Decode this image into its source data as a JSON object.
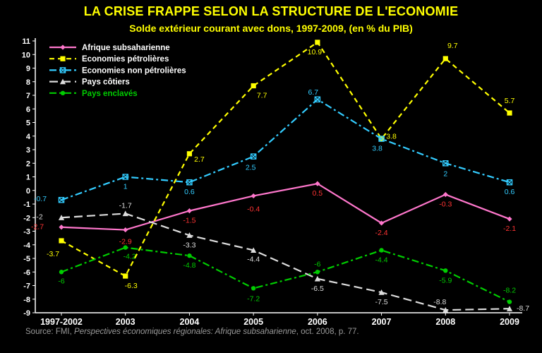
{
  "title": "LA CRISE FRAPPE SELON LA STRUCTURE DE L'ECONOMIE",
  "subtitle": "Solde extérieur courant avec dons, 1997-2009, (en % du PIB)",
  "source_prefix": "Source:  FMI, ",
  "source_italic": "Perspectives économiques régionales: Afrique subsaharienne",
  "source_suffix": ", oct. 2008, p. 77.",
  "chart_data": {
    "type": "line",
    "title": "LA CRISE FRAPPE SELON LA STRUCTURE DE L'ECONOMIE",
    "subtitle": "Solde extérieur courant avec dons, 1997-2009, (en % du PIB)",
    "categories": [
      "1997-2002",
      "2003",
      "2004",
      "2005",
      "2006",
      "2007",
      "2008",
      "2009"
    ],
    "ylim": [
      -9,
      11
    ],
    "yticks": [
      -9,
      -8,
      -7,
      -6,
      -5,
      -4,
      -3,
      -2,
      -1,
      0,
      1,
      2,
      3,
      4,
      5,
      6,
      7,
      8,
      9,
      10,
      11
    ],
    "grid": false,
    "legend_position": "top-left",
    "series": [
      {
        "name": "Afrique subsaharienne",
        "color": "#FF77CC",
        "label_color": "#FF3333",
        "dash": "solid",
        "marker": "diamond",
        "values": [
          -2.7,
          -2.9,
          -1.5,
          -0.4,
          0.5,
          -2.4,
          -0.3,
          -2.1
        ],
        "labels": [
          "-2.7",
          "-2.9",
          "-1.5",
          "-0.4",
          "0.5",
          "-2.4",
          "-0.3",
          "-2.1"
        ]
      },
      {
        "name": "Economies pétrolières",
        "color": "#FFFF00",
        "label_color": "#FFFF00",
        "dash": "dashed",
        "marker": "square",
        "values": [
          -3.7,
          -6.3,
          2.7,
          7.7,
          10.9,
          3.8,
          9.7,
          5.7
        ],
        "labels": [
          "-3.7",
          "-6.3",
          "2.7",
          "7.7",
          "10.9",
          "3.8",
          "9.7",
          "5.7"
        ]
      },
      {
        "name": "Economies non pétrolières",
        "color": "#33CCFF",
        "label_color": "#33CCFF",
        "dash": "dashdot",
        "marker": "xsquare",
        "values": [
          -0.7,
          1,
          0.6,
          2.5,
          6.7,
          3.8,
          2,
          0.6
        ],
        "labels": [
          "-0.7",
          "1",
          "0.6",
          "2.5",
          "6.7",
          "3.8",
          "2",
          "0.6"
        ]
      },
      {
        "name": "Pays côtiers",
        "color": "#DDDDDD",
        "label_color": "#DDDDDD",
        "dash": "longdash",
        "marker": "triangle",
        "values": [
          -2,
          -1.7,
          -3.3,
          -4.4,
          -6.5,
          -7.5,
          -8.8,
          -8.7
        ],
        "labels": [
          "-2",
          "-1.7",
          "-3.3",
          "-4.4",
          "-6.5",
          "-7.5",
          "-8.8",
          "-8.7"
        ]
      },
      {
        "name": "Pays enclavés",
        "color": "#00CC00",
        "label_color": "#00CC00",
        "dash": "dashdot",
        "marker": "circle",
        "values": [
          -6,
          -4.2,
          -4.8,
          -7.2,
          -6,
          -4.4,
          -5.9,
          -8.2
        ],
        "labels": [
          "-6",
          "-4.2",
          "-4.8",
          "-7.2",
          "-6",
          "-4.4",
          "-5.9",
          "-8.2"
        ]
      }
    ]
  }
}
